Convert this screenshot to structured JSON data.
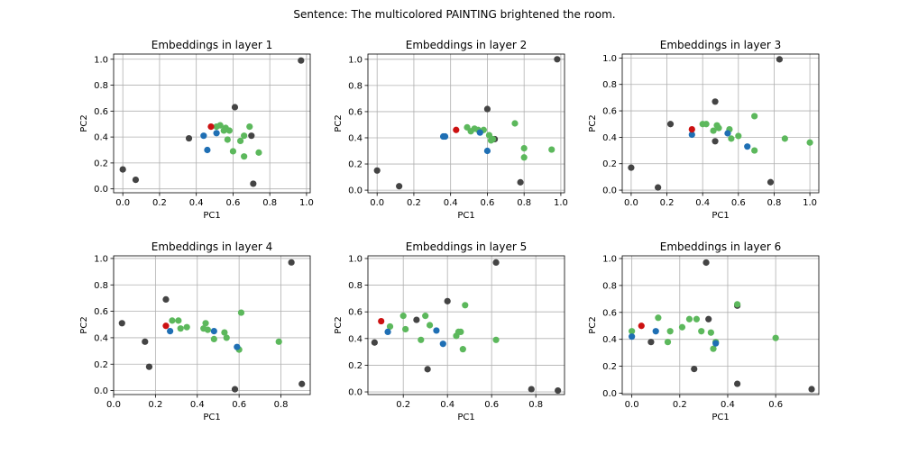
{
  "figure": {
    "suptitle": "Sentence: The multicolored PAINTING brightened the room."
  },
  "colors": {
    "gray": "#444444",
    "green": "#5cb85c",
    "blue": "#1f6fb4",
    "red": "#cc1111"
  },
  "chart_data": [
    {
      "type": "scatter",
      "title": "Embeddings in layer 1",
      "xlabel": "PC1",
      "ylabel": "PC2",
      "xlim": [
        -0.05,
        1.02
      ],
      "ylim": [
        -0.03,
        1.04
      ],
      "xticks": [
        0.0,
        0.2,
        0.4,
        0.6,
        0.8,
        1.0
      ],
      "yticks": [
        0.0,
        0.2,
        0.4,
        0.6,
        0.8,
        1.0
      ],
      "grid": true,
      "series": [
        {
          "color": "gray",
          "points": [
            [
              0.0,
              0.15
            ],
            [
              0.07,
              0.07
            ],
            [
              0.36,
              0.39
            ],
            [
              0.61,
              0.63
            ],
            [
              0.7,
              0.41
            ],
            [
              0.71,
              0.04
            ],
            [
              0.97,
              0.99
            ]
          ]
        },
        {
          "color": "green",
          "points": [
            [
              0.51,
              0.48
            ],
            [
              0.53,
              0.49
            ],
            [
              0.56,
              0.47
            ],
            [
              0.58,
              0.45
            ],
            [
              0.6,
              0.29
            ],
            [
              0.57,
              0.38
            ],
            [
              0.64,
              0.37
            ],
            [
              0.66,
              0.25
            ],
            [
              0.66,
              0.41
            ],
            [
              0.69,
              0.48
            ],
            [
              0.74,
              0.28
            ],
            [
              0.55,
              0.45
            ]
          ]
        },
        {
          "color": "blue",
          "points": [
            [
              0.44,
              0.41
            ],
            [
              0.46,
              0.3
            ],
            [
              0.51,
              0.43
            ]
          ]
        },
        {
          "color": "red",
          "points": [
            [
              0.48,
              0.48
            ]
          ]
        }
      ]
    },
    {
      "type": "scatter",
      "title": "Embeddings in layer 2",
      "xlabel": "PC1",
      "ylabel": "PC2",
      "xlim": [
        -0.05,
        1.02
      ],
      "ylim": [
        -0.02,
        1.04
      ],
      "xticks": [
        0.0,
        0.2,
        0.4,
        0.6,
        0.8,
        1.0
      ],
      "yticks": [
        0.0,
        0.2,
        0.4,
        0.6,
        0.8,
        1.0
      ],
      "grid": true,
      "series": [
        {
          "color": "gray",
          "points": [
            [
              0.0,
              0.15
            ],
            [
              0.12,
              0.03
            ],
            [
              0.6,
              0.62
            ],
            [
              0.64,
              0.39
            ],
            [
              0.78,
              0.06
            ],
            [
              0.98,
              1.0
            ]
          ]
        },
        {
          "color": "green",
          "points": [
            [
              0.49,
              0.48
            ],
            [
              0.51,
              0.45
            ],
            [
              0.53,
              0.47
            ],
            [
              0.55,
              0.46
            ],
            [
              0.58,
              0.46
            ],
            [
              0.61,
              0.42
            ],
            [
              0.62,
              0.38
            ],
            [
              0.63,
              0.39
            ],
            [
              0.75,
              0.51
            ],
            [
              0.8,
              0.32
            ],
            [
              0.8,
              0.25
            ],
            [
              0.95,
              0.31
            ]
          ]
        },
        {
          "color": "blue",
          "points": [
            [
              0.36,
              0.41
            ],
            [
              0.37,
              0.41
            ],
            [
              0.56,
              0.44
            ],
            [
              0.6,
              0.3
            ]
          ]
        },
        {
          "color": "red",
          "points": [
            [
              0.43,
              0.46
            ]
          ]
        }
      ]
    },
    {
      "type": "scatter",
      "title": "Embeddings in layer 3",
      "xlabel": "PC1",
      "ylabel": "PC2",
      "xlim": [
        -0.05,
        1.05
      ],
      "ylim": [
        -0.02,
        1.03
      ],
      "xticks": [
        0.0,
        0.2,
        0.4,
        0.6,
        0.8,
        1.0
      ],
      "yticks": [
        0.0,
        0.2,
        0.4,
        0.6,
        0.8,
        1.0
      ],
      "grid": true,
      "series": [
        {
          "color": "gray",
          "points": [
            [
              0.0,
              0.17
            ],
            [
              0.15,
              0.02
            ],
            [
              0.22,
              0.5
            ],
            [
              0.47,
              0.67
            ],
            [
              0.47,
              0.37
            ],
            [
              0.78,
              0.06
            ],
            [
              0.83,
              0.99
            ]
          ]
        },
        {
          "color": "green",
          "points": [
            [
              0.4,
              0.5
            ],
            [
              0.42,
              0.5
            ],
            [
              0.46,
              0.45
            ],
            [
              0.48,
              0.49
            ],
            [
              0.49,
              0.47
            ],
            [
              0.55,
              0.46
            ],
            [
              0.56,
              0.39
            ],
            [
              0.6,
              0.41
            ],
            [
              0.69,
              0.56
            ],
            [
              0.69,
              0.3
            ],
            [
              0.86,
              0.39
            ],
            [
              1.0,
              0.36
            ]
          ]
        },
        {
          "color": "blue",
          "points": [
            [
              0.34,
              0.42
            ],
            [
              0.54,
              0.43
            ],
            [
              0.65,
              0.33
            ]
          ]
        },
        {
          "color": "red",
          "points": [
            [
              0.34,
              0.46
            ]
          ]
        }
      ]
    },
    {
      "type": "scatter",
      "title": "Embeddings in layer 4",
      "xlabel": "PC1",
      "ylabel": "PC2",
      "xlim": [
        0.0,
        0.94
      ],
      "ylim": [
        -0.03,
        1.02
      ],
      "xticks": [
        0.0,
        0.2,
        0.4,
        0.6,
        0.8
      ],
      "yticks": [
        0.0,
        0.2,
        0.4,
        0.6,
        0.8,
        1.0
      ],
      "grid": true,
      "series": [
        {
          "color": "gray",
          "points": [
            [
              0.04,
              0.51
            ],
            [
              0.15,
              0.37
            ],
            [
              0.17,
              0.18
            ],
            [
              0.25,
              0.69
            ],
            [
              0.58,
              0.01
            ],
            [
              0.85,
              0.97
            ],
            [
              0.9,
              0.05
            ]
          ]
        },
        {
          "color": "green",
          "points": [
            [
              0.28,
              0.53
            ],
            [
              0.31,
              0.53
            ],
            [
              0.32,
              0.47
            ],
            [
              0.35,
              0.48
            ],
            [
              0.43,
              0.47
            ],
            [
              0.44,
              0.51
            ],
            [
              0.45,
              0.46
            ],
            [
              0.48,
              0.39
            ],
            [
              0.53,
              0.44
            ],
            [
              0.54,
              0.4
            ],
            [
              0.6,
              0.31
            ],
            [
              0.61,
              0.59
            ],
            [
              0.79,
              0.37
            ]
          ]
        },
        {
          "color": "blue",
          "points": [
            [
              0.27,
              0.45
            ],
            [
              0.48,
              0.45
            ],
            [
              0.59,
              0.33
            ]
          ]
        },
        {
          "color": "red",
          "points": [
            [
              0.25,
              0.49
            ]
          ]
        }
      ]
    },
    {
      "type": "scatter",
      "title": "Embeddings in layer 5",
      "xlabel": "PC1",
      "ylabel": "PC2",
      "xlim": [
        0.04,
        0.93
      ],
      "ylim": [
        -0.02,
        1.02
      ],
      "xticks": [
        0.2,
        0.4,
        0.6,
        0.8
      ],
      "yticks": [
        0.0,
        0.2,
        0.4,
        0.6,
        0.8,
        1.0
      ],
      "grid": true,
      "series": [
        {
          "color": "gray",
          "points": [
            [
              0.07,
              0.37
            ],
            [
              0.26,
              0.54
            ],
            [
              0.31,
              0.17
            ],
            [
              0.4,
              0.68
            ],
            [
              0.62,
              0.97
            ],
            [
              0.78,
              0.02
            ],
            [
              0.9,
              0.01
            ]
          ]
        },
        {
          "color": "green",
          "points": [
            [
              0.14,
              0.49
            ],
            [
              0.2,
              0.57
            ],
            [
              0.21,
              0.47
            ],
            [
              0.28,
              0.39
            ],
            [
              0.3,
              0.57
            ],
            [
              0.32,
              0.5
            ],
            [
              0.44,
              0.42
            ],
            [
              0.45,
              0.45
            ],
            [
              0.46,
              0.45
            ],
            [
              0.47,
              0.32
            ],
            [
              0.48,
              0.65
            ],
            [
              0.62,
              0.39
            ]
          ]
        },
        {
          "color": "blue",
          "points": [
            [
              0.13,
              0.45
            ],
            [
              0.35,
              0.46
            ],
            [
              0.38,
              0.36
            ]
          ]
        },
        {
          "color": "red",
          "points": [
            [
              0.1,
              0.53
            ]
          ]
        }
      ]
    },
    {
      "type": "scatter",
      "title": "Embeddings in layer 6",
      "xlabel": "PC1",
      "ylabel": "PC2",
      "xlim": [
        -0.04,
        0.78
      ],
      "ylim": [
        -0.01,
        1.02
      ],
      "xticks": [
        0.0,
        0.2,
        0.4,
        0.6
      ],
      "yticks": [
        0.0,
        0.2,
        0.4,
        0.6,
        0.8,
        1.0
      ],
      "grid": true,
      "series": [
        {
          "color": "gray",
          "points": [
            [
              0.08,
              0.38
            ],
            [
              0.26,
              0.18
            ],
            [
              0.31,
              0.97
            ],
            [
              0.32,
              0.55
            ],
            [
              0.44,
              0.65
            ],
            [
              0.44,
              0.07
            ],
            [
              0.75,
              0.03
            ]
          ]
        },
        {
          "color": "green",
          "points": [
            [
              0.0,
              0.46
            ],
            [
              0.11,
              0.56
            ],
            [
              0.15,
              0.38
            ],
            [
              0.16,
              0.46
            ],
            [
              0.21,
              0.49
            ],
            [
              0.24,
              0.55
            ],
            [
              0.27,
              0.55
            ],
            [
              0.29,
              0.46
            ],
            [
              0.33,
              0.45
            ],
            [
              0.34,
              0.33
            ],
            [
              0.35,
              0.38
            ],
            [
              0.44,
              0.66
            ],
            [
              0.6,
              0.41
            ]
          ]
        },
        {
          "color": "blue",
          "points": [
            [
              0.0,
              0.42
            ],
            [
              0.1,
              0.46
            ],
            [
              0.35,
              0.37
            ]
          ]
        },
        {
          "color": "red",
          "points": [
            [
              0.04,
              0.5
            ]
          ]
        }
      ]
    }
  ]
}
